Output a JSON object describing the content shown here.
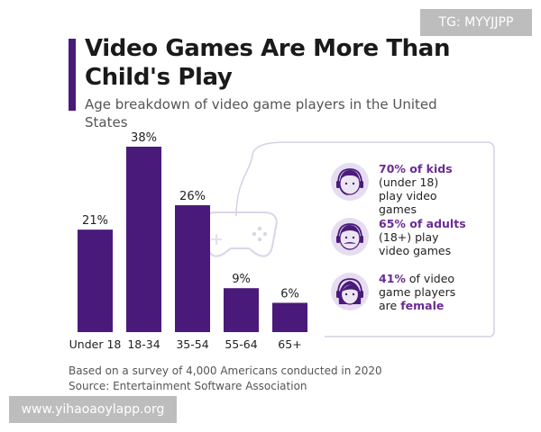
{
  "header": {
    "title": "Video Games Are More Than Child's Play",
    "subtitle": "Age breakdown of video game players in the United States"
  },
  "chart_data": {
    "type": "bar",
    "title": "Video Games Are More Than Child's Play",
    "subtitle": "Age breakdown of video game players in the United States",
    "categories": [
      "Under 18",
      "18-34",
      "35-54",
      "55-64",
      "65+"
    ],
    "values": [
      21,
      38,
      26,
      9,
      6
    ],
    "value_labels": [
      "21%",
      "38%",
      "26%",
      "9%",
      "6%"
    ],
    "unit": "%",
    "ylim": [
      0,
      38
    ],
    "xlabel": "",
    "ylabel": "",
    "grid": false,
    "bar_color": "#4a1a7a",
    "annotations": [
      "70% of kids (under 18) play video games",
      "65% of adults (18+) play video games",
      "41% of video game players are female"
    ]
  },
  "facts": [
    {
      "highlight": "70% of kids",
      "line1": "(under 18)",
      "line2": "play video games",
      "icon": "kid-face-headset-icon"
    },
    {
      "highlight": "65% of adults",
      "line1": "(18+) play",
      "line2": "video games",
      "icon": "adult-face-mustache-headset-icon"
    },
    {
      "highlight": "41%",
      "rest1": " of video",
      "line1": "game players",
      "line2_pre": "are ",
      "line2_hl": "female",
      "icon": "female-face-headset-icon"
    }
  ],
  "footer": {
    "note": "Based on a survey of 4,000 Americans conducted in 2020",
    "source": "Source: Entertainment Software Association"
  },
  "tag": "TG: MYYJJPP",
  "watermark": "www.yihaoaoylapp.org",
  "colors": {
    "bar": "#4a1a7a",
    "accent": "#4a1a7a",
    "highlight": "#6a2c91",
    "icon_fill": "#ece6f3",
    "icon_bg": "#e6ddf0",
    "decor_line": "#d9cfe6"
  }
}
